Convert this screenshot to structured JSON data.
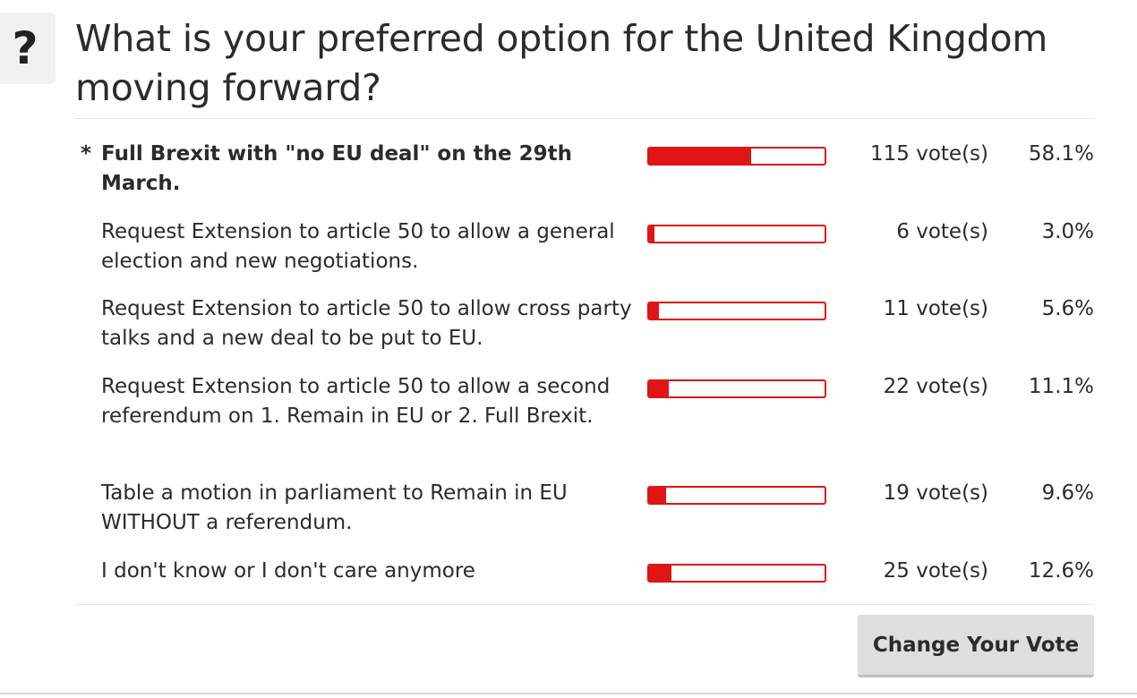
{
  "poll": {
    "icon": "?",
    "question": "What is your preferred option for the United Kingdom moving forward?",
    "selected_marker": "*",
    "options": [
      {
        "label": "Full Brexit with \"no EU deal\" on the 29th March.",
        "votes": "115 vote(s)",
        "percent": "58.1%",
        "fraction": 0.581,
        "selected": true
      },
      {
        "label": "Request Extension to article 50 to allow a general election and new negotiations.",
        "votes": "6 vote(s)",
        "percent": "3.0%",
        "fraction": 0.03,
        "selected": false
      },
      {
        "label": "Request Extension to article 50 to allow cross party talks and a new deal to be put to EU.",
        "votes": "11 vote(s)",
        "percent": "5.6%",
        "fraction": 0.056,
        "selected": false
      },
      {
        "label": "Request Extension to article 50 to allow a second referendum on 1. Remain in EU or 2. Full Brexit.",
        "votes": "22 vote(s)",
        "percent": "11.1%",
        "fraction": 0.111,
        "selected": false
      },
      {
        "label": "Table a motion in parliament to Remain in EU WITHOUT a referendum.",
        "votes": "19 vote(s)",
        "percent": "9.6%",
        "fraction": 0.096,
        "selected": false
      },
      {
        "label": "I don't know or I don't care anymore",
        "votes": "25 vote(s)",
        "percent": "12.6%",
        "fraction": 0.126,
        "selected": false
      }
    ],
    "change_vote_label": "Change Your Vote",
    "bar_color": "#e01515"
  }
}
